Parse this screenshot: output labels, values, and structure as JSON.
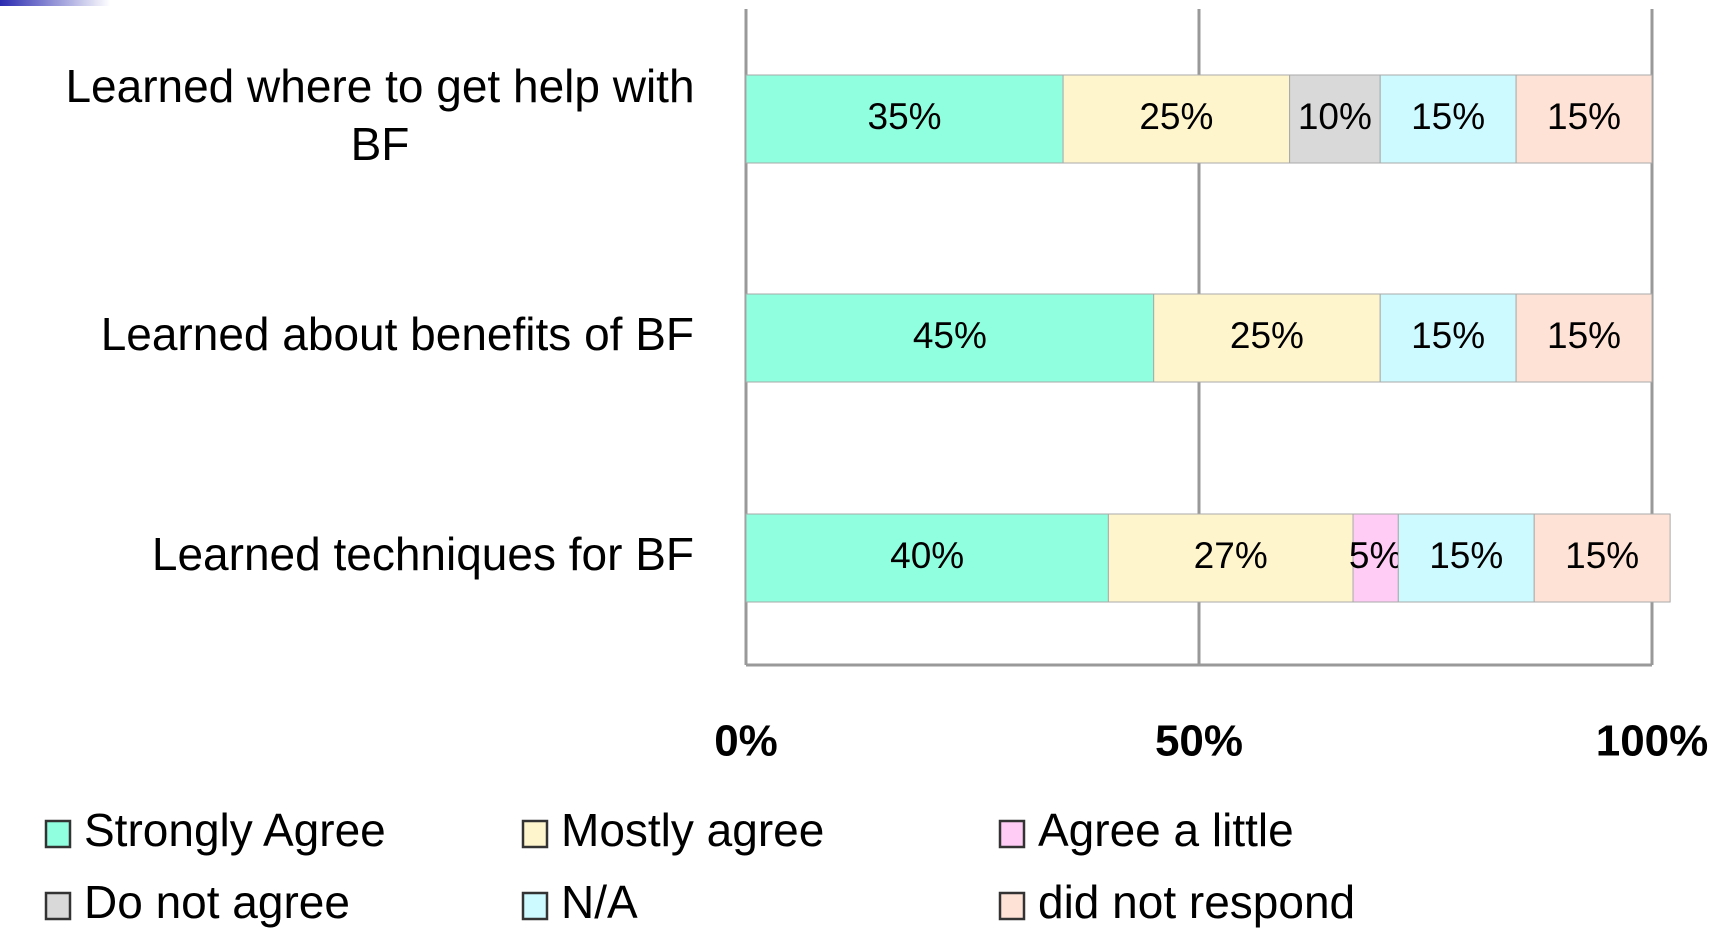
{
  "chart_data": {
    "type": "stacked-barh",
    "categories": [
      "Learned where to get help with BF",
      "Learned about benefits of BF",
      "Learned techniques for BF"
    ],
    "series": [
      {
        "name": "Strongly Agree",
        "color": "#8fffdf",
        "values": [
          35,
          45,
          40
        ],
        "value_labels": [
          "35%",
          "45%",
          "40%"
        ]
      },
      {
        "name": "Mostly agree",
        "color": "#fff5cc",
        "values": [
          25,
          25,
          27
        ],
        "value_labels": [
          "25%",
          "25%",
          "27%"
        ]
      },
      {
        "name": "Agree a little",
        "color": "#ffccf5",
        "values": [
          null,
          null,
          5
        ],
        "value_labels": [
          null,
          null,
          "5%"
        ]
      },
      {
        "name": "Do not agree",
        "color": "#d9d9d9",
        "values": [
          10,
          null,
          null
        ],
        "value_labels": [
          "10%",
          null,
          null
        ]
      },
      {
        "name": "N/A",
        "color": "#ccfaff",
        "values": [
          15,
          15,
          15
        ],
        "value_labels": [
          "15%",
          "15%",
          "15%"
        ]
      },
      {
        "name": "did not respond",
        "color": "#ffe2d6",
        "values": [
          15,
          15,
          15
        ],
        "value_labels": [
          "15%",
          "15%",
          "15%"
        ]
      }
    ],
    "xlim": [
      0,
      100
    ],
    "xticks": [
      {
        "value": 0,
        "label": "0%"
      },
      {
        "value": 50,
        "label": "50%"
      },
      {
        "value": 100,
        "label": "100%"
      }
    ],
    "grid": true
  }
}
